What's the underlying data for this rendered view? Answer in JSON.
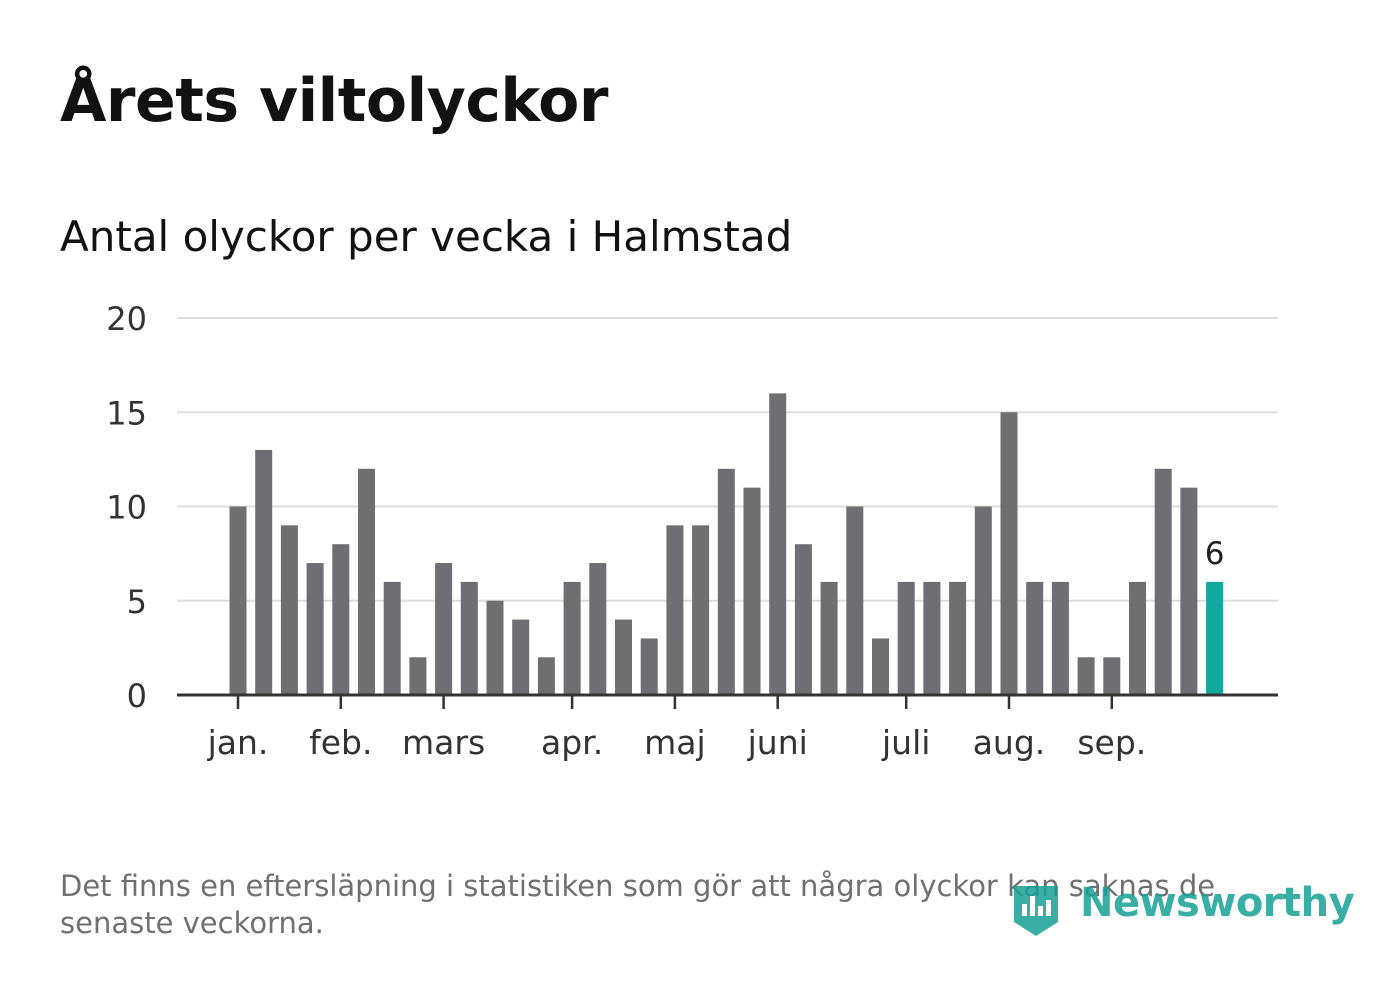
{
  "title": "Årets viltolyckor",
  "subtitle": "Antal olyckor per vecka i Halmstad",
  "footnote": "Det finns en eftersläpning i statistiken som gör att några olyckor kan saknas de senaste veckorna.",
  "logo": {
    "text": "Newsworthy",
    "icon": "newsworthy-logo-icon"
  },
  "colors": {
    "bar": "#6e6e73",
    "highlight": "#13a89e",
    "grid": "#dddddd",
    "axis": "#333333"
  },
  "chart_data": {
    "type": "bar",
    "title": "Antal olyckor per vecka i Halmstad",
    "xlabel": "",
    "ylabel": "",
    "ylim": [
      0,
      20
    ],
    "yticks": [
      0,
      5,
      10,
      15,
      20
    ],
    "grid": true,
    "weeks": [
      1,
      2,
      3,
      4,
      5,
      6,
      7,
      8,
      9,
      10,
      11,
      12,
      13,
      14,
      15,
      16,
      17,
      18,
      19,
      20,
      21,
      22,
      23,
      24,
      25,
      26,
      27,
      28,
      29,
      30,
      31,
      32,
      33,
      34,
      35,
      36,
      37,
      38,
      39
    ],
    "values": [
      10,
      13,
      9,
      7,
      8,
      12,
      6,
      2,
      7,
      6,
      5,
      4,
      2,
      6,
      7,
      4,
      3,
      9,
      9,
      12,
      11,
      16,
      8,
      6,
      10,
      3,
      6,
      6,
      6,
      10,
      15,
      6,
      6,
      2,
      2,
      6,
      12,
      11,
      6
    ],
    "highlight_index": 38,
    "last_value_label": "6",
    "month_ticks": [
      {
        "label": "jan.",
        "position": 1
      },
      {
        "label": "feb.",
        "position": 5
      },
      {
        "label": "mars",
        "position": 9
      },
      {
        "label": "apr.",
        "position": 14
      },
      {
        "label": "maj",
        "position": 18
      },
      {
        "label": "juni",
        "position": 22
      },
      {
        "label": "juli",
        "position": 27
      },
      {
        "label": "aug.",
        "position": 31
      },
      {
        "label": "sep.",
        "position": 35
      }
    ]
  }
}
